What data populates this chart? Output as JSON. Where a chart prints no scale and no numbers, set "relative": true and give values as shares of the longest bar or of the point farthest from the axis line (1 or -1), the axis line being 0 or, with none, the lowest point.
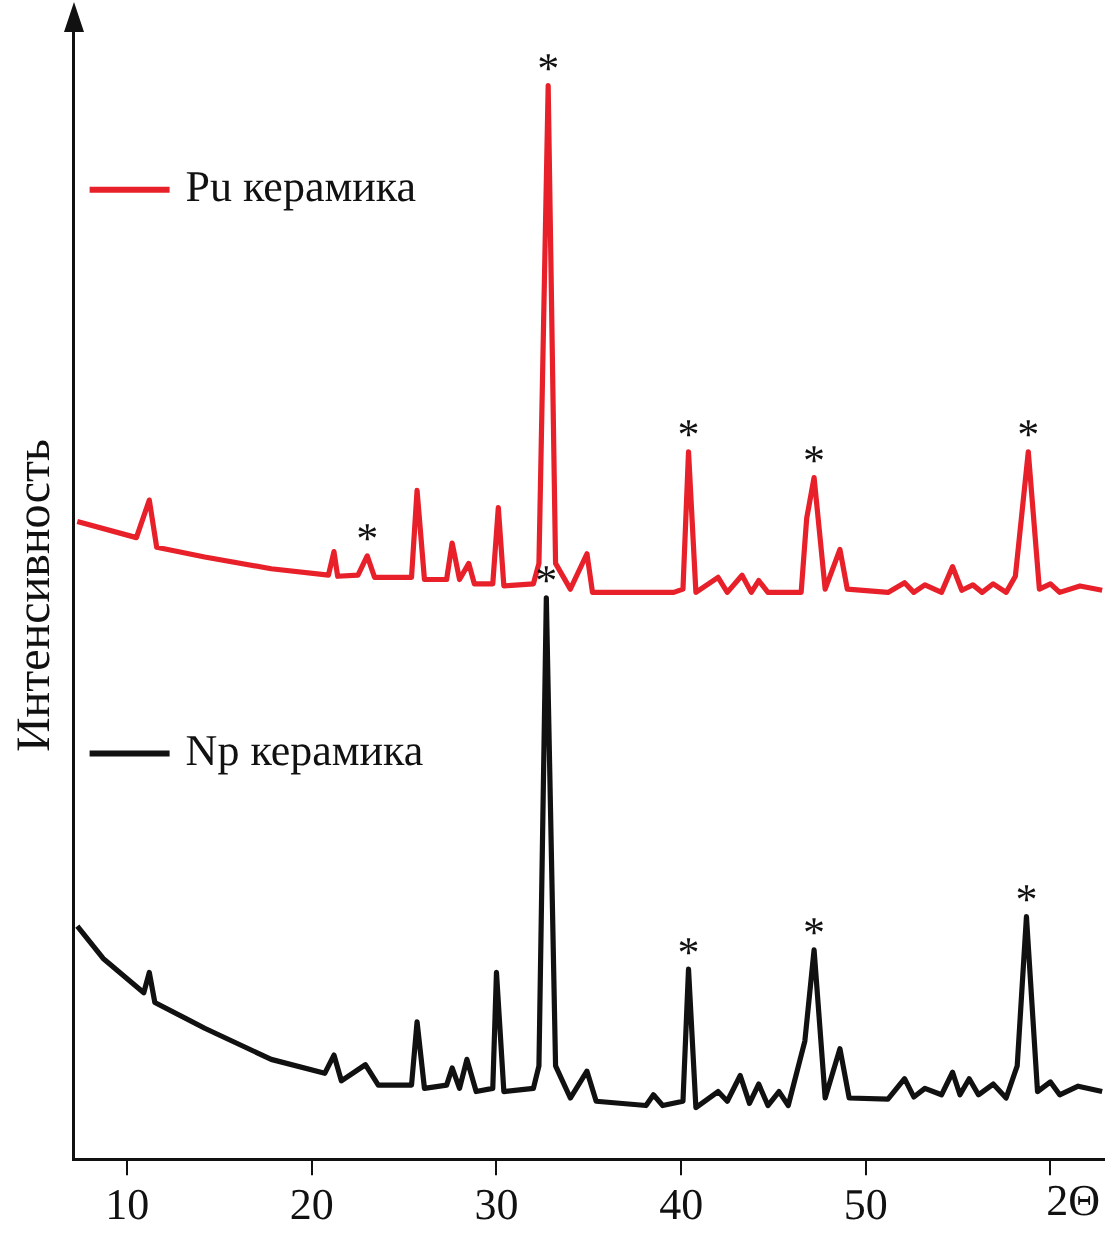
{
  "chart_data": {
    "type": "line",
    "ylabel": "Интенсивность",
    "relative": true,
    "xlim": [
      7.1,
      62.9
    ],
    "xlabel": "2Θ",
    "xticks": [
      10,
      20,
      30,
      40,
      50,
      {
        "value": 60,
        "label": null
      }
    ],
    "legend": "left",
    "grid": false,
    "marker": "none",
    "line_style": "solid",
    "series": [
      {
        "name": "Pu керамика",
        "color": "#e8202a",
        "x": [
          7.3,
          10.5,
          11.2,
          11.6,
          14.2,
          17.8,
          20.9,
          21.2,
          21.4,
          22.5,
          23.0,
          23.4,
          25.4,
          25.7,
          26.1,
          27.3,
          27.6,
          28.0,
          28.5,
          28.8,
          29.8,
          30.1,
          30.4,
          32.0,
          32.3,
          32.8,
          33.2,
          34.0,
          34.9,
          35.2,
          39.6,
          40.1,
          40.4,
          40.8,
          42.0,
          42.5,
          43.3,
          43.8,
          44.2,
          44.7,
          46.5,
          46.8,
          47.2,
          47.8,
          48.6,
          49.0,
          51.2,
          52.1,
          52.6,
          53.2,
          54.1,
          54.7,
          55.2,
          55.8,
          56.3,
          56.9,
          57.6,
          58.1,
          58.8,
          59.4,
          60.0,
          60.5,
          61.6,
          62.8
        ],
        "values": [
          0.594,
          0.579,
          0.614,
          0.57,
          0.561,
          0.55,
          0.544,
          0.566,
          0.543,
          0.544,
          0.562,
          0.542,
          0.542,
          0.623,
          0.54,
          0.54,
          0.574,
          0.54,
          0.555,
          0.536,
          0.536,
          0.607,
          0.534,
          0.536,
          0.555,
          1.0,
          0.555,
          0.531,
          0.564,
          0.528,
          0.528,
          0.531,
          0.659,
          0.528,
          0.542,
          0.528,
          0.544,
          0.528,
          0.539,
          0.528,
          0.528,
          0.597,
          0.635,
          0.531,
          0.568,
          0.531,
          0.528,
          0.537,
          0.528,
          0.535,
          0.528,
          0.552,
          0.53,
          0.535,
          0.528,
          0.536,
          0.528,
          0.543,
          0.659,
          0.531,
          0.536,
          0.528,
          0.534,
          0.53
        ]
      },
      {
        "name": "Np керамика",
        "color": "#111111",
        "x": [
          7.3,
          8.7,
          10.9,
          11.2,
          11.5,
          14.2,
          17.8,
          20.7,
          21.2,
          21.6,
          22.9,
          23.6,
          25.4,
          25.7,
          26.1,
          27.3,
          27.6,
          28.0,
          28.4,
          28.9,
          29.8,
          30.0,
          30.4,
          32.0,
          32.3,
          32.7,
          33.2,
          34.0,
          34.9,
          35.4,
          38.1,
          38.5,
          39.0,
          40.1,
          40.4,
          40.8,
          42.0,
          42.5,
          43.2,
          43.7,
          44.2,
          44.7,
          45.3,
          45.8,
          46.7,
          47.2,
          47.8,
          48.6,
          49.1,
          51.2,
          52.1,
          52.6,
          53.2,
          54.1,
          54.7,
          55.1,
          55.6,
          56.1,
          56.9,
          57.6,
          58.2,
          58.7,
          59.3,
          60.0,
          60.5,
          61.5,
          62.8
        ],
        "values": [
          0.217,
          0.187,
          0.155,
          0.174,
          0.146,
          0.122,
          0.093,
          0.08,
          0.097,
          0.073,
          0.088,
          0.069,
          0.069,
          0.128,
          0.066,
          0.069,
          0.085,
          0.066,
          0.093,
          0.063,
          0.066,
          0.174,
          0.063,
          0.066,
          0.087,
          0.523,
          0.087,
          0.057,
          0.082,
          0.054,
          0.05,
          0.06,
          0.05,
          0.054,
          0.177,
          0.048,
          0.063,
          0.054,
          0.078,
          0.052,
          0.07,
          0.05,
          0.063,
          0.05,
          0.11,
          0.195,
          0.057,
          0.103,
          0.057,
          0.056,
          0.075,
          0.058,
          0.066,
          0.06,
          0.081,
          0.06,
          0.075,
          0.06,
          0.07,
          0.057,
          0.087,
          0.226,
          0.063,
          0.072,
          0.06,
          0.068,
          0.063
        ]
      }
    ],
    "annotations": [
      {
        "text": "*",
        "x": 23.0,
        "y": 0.562
      },
      {
        "text": "*",
        "x": 32.8,
        "y": 1.0
      },
      {
        "text": "*",
        "x": 40.4,
        "y": 0.659
      },
      {
        "text": "*",
        "x": 47.2,
        "y": 0.635
      },
      {
        "text": "*",
        "x": 58.8,
        "y": 0.659
      },
      {
        "text": "*",
        "x": 32.7,
        "y": 0.523
      },
      {
        "text": "*",
        "x": 40.4,
        "y": 0.177
      },
      {
        "text": "*",
        "x": 47.2,
        "y": 0.195
      },
      {
        "text": "*",
        "x": 58.7,
        "y": 0.226
      }
    ]
  }
}
